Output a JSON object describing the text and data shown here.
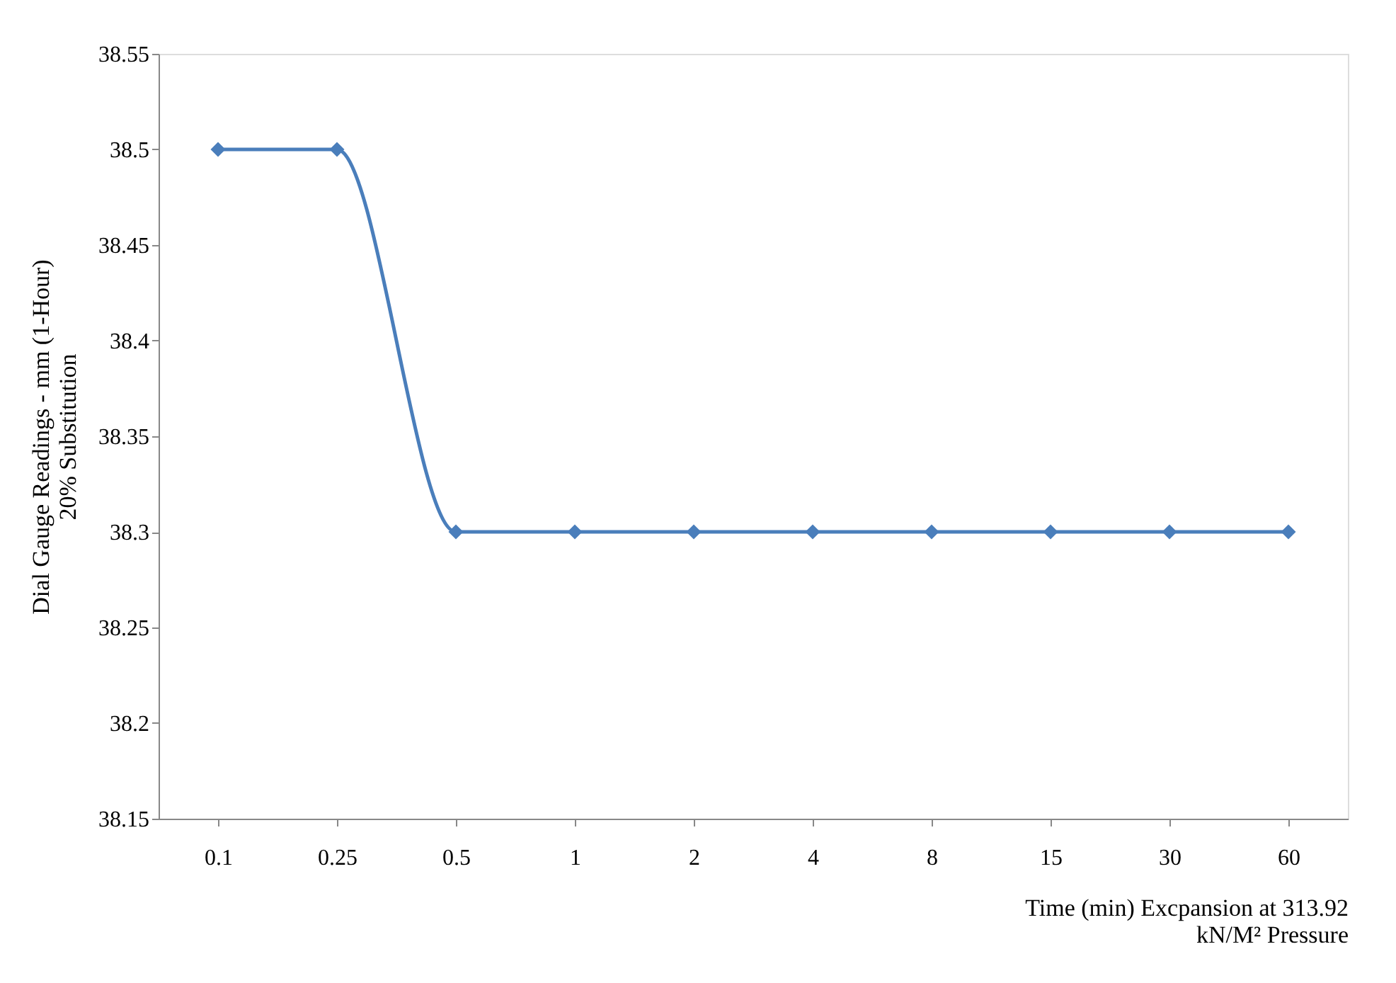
{
  "chart_data": {
    "type": "line",
    "xlabel": "Time (min) Excpansion at 313.92\nkN/M² Pressure",
    "ylabel": "Dial Gauge Readings - mm (1-Hour)\n20% Substitution",
    "categories": [
      "0.1",
      "0.25",
      "0.5",
      "1",
      "2",
      "4",
      "8",
      "15",
      "30",
      "60"
    ],
    "series": [
      {
        "color": "#4a7ebb",
        "values": [
          38.5,
          38.5,
          38.3,
          38.3,
          38.3,
          38.3,
          38.3,
          38.3,
          38.3,
          38.3
        ]
      }
    ],
    "ylim": [
      38.15,
      38.55
    ],
    "yticks": [
      38.15,
      38.2,
      38.25,
      38.3,
      38.35,
      38.4,
      38.45,
      38.5,
      38.55
    ],
    "grid": false,
    "marker": "diamond",
    "line_style": "solid"
  }
}
